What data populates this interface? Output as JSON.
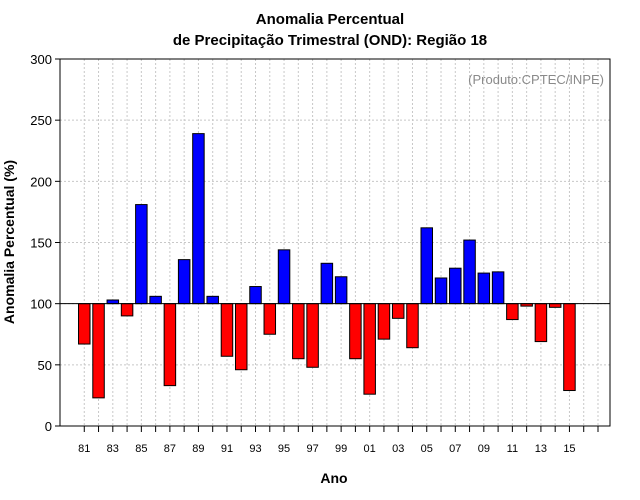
{
  "chart_data": {
    "type": "bar",
    "title": [
      "Anomalia Percentual",
      "de Precipitação Trimestral (OND): Região 18"
    ],
    "xlabel": "Ano",
    "ylabel": "Anomalia Percentual (%)",
    "annotation": "(Produto:CPTEC/INPE)",
    "ylim": [
      0,
      300
    ],
    "yticks": [
      0,
      50,
      100,
      150,
      200,
      250,
      300
    ],
    "baseline": 100,
    "x_tick_labels": [
      "81",
      "83",
      "85",
      "87",
      "89",
      "91",
      "93",
      "95",
      "97",
      "99",
      "01",
      "03",
      "05",
      "07",
      "09",
      "11",
      "13",
      "15"
    ],
    "categories": [
      "81",
      "82",
      "83",
      "84",
      "85",
      "86",
      "87",
      "88",
      "89",
      "90",
      "91",
      "92",
      "93",
      "94",
      "95",
      "96",
      "97",
      "98",
      "99",
      "00",
      "01",
      "02",
      "03",
      "04",
      "05",
      "06",
      "07",
      "08",
      "09",
      "10",
      "11",
      "12",
      "13",
      "14",
      "15",
      "16",
      "17"
    ],
    "values": [
      67,
      23,
      103,
      90,
      181,
      106,
      33,
      136,
      239,
      106,
      57,
      46,
      114,
      75,
      144,
      55,
      48,
      133,
      122,
      55,
      26,
      71,
      88,
      64,
      162,
      121,
      129,
      152,
      125,
      126,
      87,
      98,
      69,
      97,
      29,
      null,
      null
    ],
    "colors": {
      "above": "#0000ff",
      "below": "#ff0000",
      "grid": "#c8c8c8"
    }
  }
}
